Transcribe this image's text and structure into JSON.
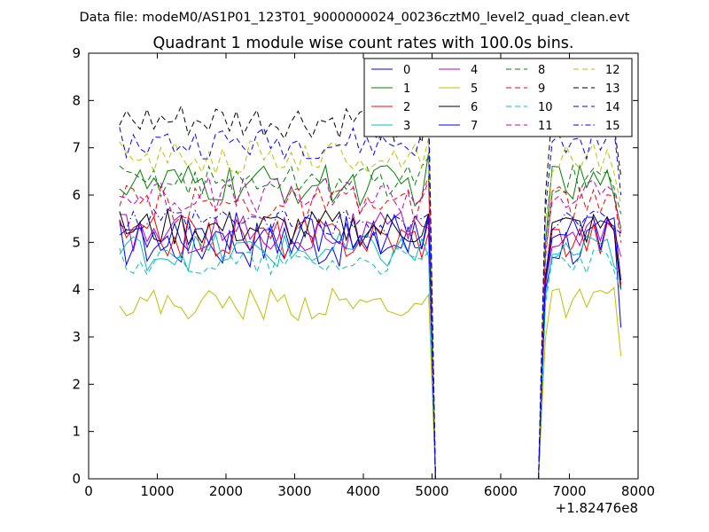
{
  "page_header": "Data file: modeM0/AS1P01_123T01_9000000024_00236cztM0_level2_quad_clean.evt",
  "chart_data": {
    "type": "line",
    "title": "Quadrant 1 module wise count rates with 100.0s bins.",
    "xlabel": "",
    "ylabel": "",
    "x_offset_label": "+1.82476e8",
    "xlim": [
      0,
      8000
    ],
    "ylim": [
      0,
      9
    ],
    "xticks": [
      0,
      1000,
      2000,
      3000,
      4000,
      5000,
      6000,
      7000,
      8000
    ],
    "yticks": [
      0,
      1,
      2,
      3,
      4,
      5,
      6,
      7,
      8,
      9
    ],
    "grid": false,
    "legend_position": "top-right",
    "legend_columns": 4,
    "x_start": 450,
    "x_step": 100,
    "gap_from_index": 46,
    "gap_to_index": 61,
    "resume_index": 62,
    "series": [
      {
        "name": "0",
        "color": "#0000ff",
        "dash": "solid",
        "level": 5.0,
        "amp": 0.55,
        "peak": 5.6,
        "end": 3.2
      },
      {
        "name": "1",
        "color": "#008000",
        "dash": "solid",
        "level": 6.2,
        "amp": 0.45,
        "peak": 6.9,
        "end": 5.3
      },
      {
        "name": "2",
        "color": "#ff0000",
        "dash": "solid",
        "level": 5.1,
        "amp": 0.45,
        "peak": 5.2,
        "end": 4.1
      },
      {
        "name": "3",
        "color": "#00bfbf",
        "dash": "solid",
        "level": 4.8,
        "amp": 0.4,
        "peak": 4.7,
        "end": 4.3
      },
      {
        "name": "4",
        "color": "#bf00bf",
        "dash": "solid",
        "level": 5.2,
        "amp": 0.45,
        "peak": 5.3,
        "end": 4.7
      },
      {
        "name": "5",
        "color": "#bfbf00",
        "dash": "solid",
        "level": 3.7,
        "amp": 0.35,
        "peak": 3.9,
        "end": 2.6
      },
      {
        "name": "6",
        "color": "#000000",
        "dash": "solid",
        "level": 5.3,
        "amp": 0.4,
        "peak": 5.6,
        "end": 4.0
      },
      {
        "name": "7",
        "color": "#0000ff",
        "dash": "solid",
        "level": 5.2,
        "amp": 0.45,
        "peak": 5.5,
        "end": 4.2
      },
      {
        "name": "8",
        "color": "#008000",
        "dash": "dashed",
        "level": 6.3,
        "amp": 0.35,
        "peak": 6.8,
        "end": 5.6
      },
      {
        "name": "9",
        "color": "#ff0000",
        "dash": "dashed",
        "level": 5.8,
        "amp": 0.4,
        "peak": 6.4,
        "end": 5.0
      },
      {
        "name": "10",
        "color": "#00bfbf",
        "dash": "dashed",
        "level": 4.6,
        "amp": 0.3,
        "peak": 4.8,
        "end": 4.0
      },
      {
        "name": "11",
        "color": "#bf00bf",
        "dash": "dashed",
        "level": 6.0,
        "amp": 0.4,
        "peak": 6.3,
        "end": 5.2
      },
      {
        "name": "12",
        "color": "#bfbf00",
        "dash": "dashed",
        "level": 6.8,
        "amp": 0.35,
        "peak": 7.2,
        "end": 5.8
      },
      {
        "name": "13",
        "color": "#000000",
        "dash": "dashed",
        "level": 7.5,
        "amp": 0.4,
        "peak": 8.0,
        "end": 6.4
      },
      {
        "name": "14",
        "color": "#0000ff",
        "dash": "dashed",
        "level": 7.1,
        "amp": 0.35,
        "peak": 7.6,
        "end": 6.0
      },
      {
        "name": "15",
        "color": "#0000ff",
        "dash": "dashdot",
        "level": 5.4,
        "amp": 0.3,
        "peak": 5.6,
        "end": 5.2
      }
    ]
  }
}
